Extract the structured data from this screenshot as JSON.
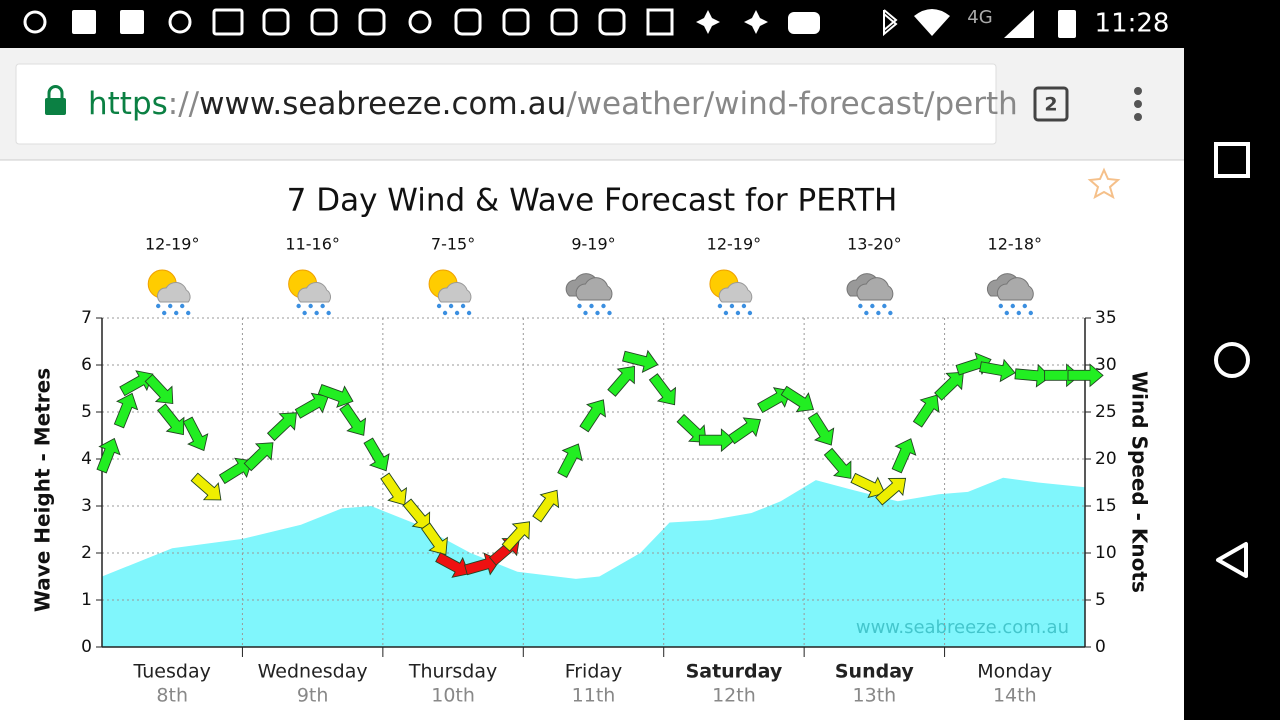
{
  "status_bar": {
    "network": "4G",
    "time": "11:28"
  },
  "browser": {
    "url_scheme": "https",
    "url_separator": "://",
    "url_host": "www.seabreeze.com.au",
    "url_path": "/weather/wind-forecast/perth",
    "tab_count": "2"
  },
  "chart_data": {
    "type": "wind-wave",
    "title": "7 Day Wind & Wave Forecast for PERTH",
    "y_label": "Wave Height - Metres",
    "y2_label": "Wind Speed - Knots",
    "watermark": "www.seabreeze.com.au",
    "days": [
      {
        "name": "Tuesday",
        "date": "8th",
        "temps": "12-19°",
        "icon": "sun-rain",
        "bold": false
      },
      {
        "name": "Wednesday",
        "date": "9th",
        "temps": "11-16°",
        "icon": "sun-rain",
        "bold": false
      },
      {
        "name": "Thursday",
        "date": "10th",
        "temps": "7-15°",
        "icon": "sun-rain",
        "bold": false
      },
      {
        "name": "Friday",
        "date": "11th",
        "temps": "9-19°",
        "icon": "rain",
        "bold": false
      },
      {
        "name": "Saturday",
        "date": "12th",
        "temps": "12-19°",
        "icon": "sun-rain",
        "bold": true
      },
      {
        "name": "Sunday",
        "date": "13th",
        "temps": "13-20°",
        "icon": "rain",
        "bold": true
      },
      {
        "name": "Monday",
        "date": "14th",
        "temps": "12-18°",
        "icon": "rain",
        "bold": false
      }
    ],
    "xlim": [
      0,
      168
    ],
    "ylim": [
      0,
      7
    ],
    "yticks": [
      0,
      1,
      2,
      3,
      4,
      5,
      6,
      7
    ],
    "y2lim": [
      0,
      35
    ],
    "y2ticks": [
      0,
      5,
      10,
      15,
      20,
      25,
      30,
      35
    ],
    "grid": true,
    "wave": {
      "color": "#80f6fc",
      "x": [
        0,
        12,
        24,
        34,
        41,
        46,
        48,
        54,
        63,
        71,
        81,
        85,
        92,
        97,
        104,
        111,
        116,
        122,
        128,
        136,
        143,
        148,
        154,
        160,
        168
      ],
      "values": [
        1.5,
        2.1,
        2.3,
        2.6,
        2.95,
        3.0,
        2.9,
        2.6,
        2.0,
        1.6,
        1.45,
        1.5,
        2.0,
        2.65,
        2.7,
        2.85,
        3.1,
        3.55,
        3.35,
        3.1,
        3.25,
        3.3,
        3.6,
        3.5,
        3.4
      ]
    },
    "wind": {
      "axis": "y2",
      "x": [
        1,
        4,
        6,
        10,
        12,
        16,
        18,
        23,
        27,
        31,
        36,
        40,
        43,
        47,
        50,
        54,
        57,
        60,
        65,
        69,
        71,
        76,
        80,
        84,
        89,
        92,
        96,
        101,
        105,
        110,
        115,
        119,
        123,
        126,
        131,
        135,
        137,
        141,
        145,
        149,
        153,
        159,
        164,
        168
      ],
      "values": [
        20.4,
        25.2,
        28.1,
        27.3,
        24.1,
        22.6,
        16.9,
        18.8,
        20.4,
        23.6,
        25.7,
        26.8,
        24.1,
        20.4,
        16.7,
        14.0,
        11.4,
        8.7,
        8.7,
        10.3,
        11.9,
        15.1,
        19.9,
        24.7,
        28.4,
        30.5,
        27.3,
        23.1,
        22.0,
        23.1,
        26.3,
        26.3,
        23.1,
        19.4,
        17.2,
        16.7,
        20.4,
        25.2,
        27.9,
        30.0,
        29.5,
        28.9,
        28.9,
        28.9
      ],
      "colors": [
        "#22ee22",
        "#22ee22",
        "#22ee22",
        "#22ee22",
        "#22ee22",
        "#22ee22",
        "#eeee00",
        "#22ee22",
        "#22ee22",
        "#22ee22",
        "#22ee22",
        "#22ee22",
        "#22ee22",
        "#22ee22",
        "#eeee00",
        "#eeee00",
        "#eeee00",
        "#ee1111",
        "#ee1111",
        "#ee1111",
        "#eeee00",
        "#eeee00",
        "#22ee22",
        "#22ee22",
        "#22ee22",
        "#22ee22",
        "#22ee22",
        "#22ee22",
        "#22ee22",
        "#22ee22",
        "#22ee22",
        "#22ee22",
        "#22ee22",
        "#22ee22",
        "#eeee00",
        "#eeee00",
        "#22ee22",
        "#22ee22",
        "#22ee22",
        "#22ee22",
        "#22ee22",
        "#22ee22",
        "#22ee22",
        "#22ee22"
      ]
    }
  }
}
